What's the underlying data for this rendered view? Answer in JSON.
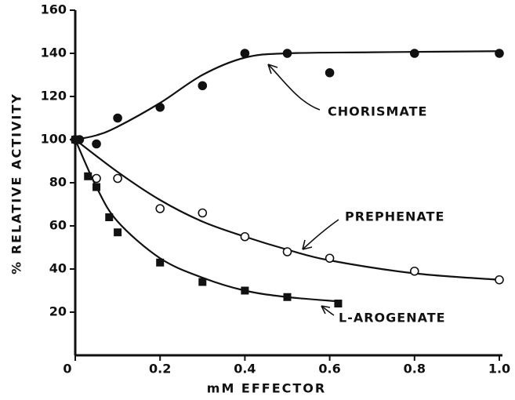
{
  "chart_data": {
    "type": "scatter",
    "xlabel": "mM EFFECTOR",
    "ylabel": "% RELATIVE ACTIVITY",
    "xlim": [
      0,
      1.0
    ],
    "ylim": [
      0,
      160
    ],
    "xticks": [
      0,
      0.2,
      0.4,
      0.6,
      0.8,
      {
        "value": 1,
        "label": "1.0"
      }
    ],
    "yticks": [
      20,
      40,
      60,
      80,
      100,
      120,
      140,
      160
    ],
    "color": "#111111",
    "series": [
      {
        "name": "CHORISMATE",
        "marker": "filled-circle",
        "x": [
          0,
          0.01,
          0.05,
          0.1,
          0.2,
          0.3,
          0.4,
          0.5,
          0.6,
          0.8,
          1.0
        ],
        "values": [
          100,
          100,
          98,
          110,
          115,
          125,
          140,
          140,
          131,
          140,
          140
        ],
        "fit_x": [
          0,
          0.05,
          0.1,
          0.2,
          0.3,
          0.4,
          0.5,
          0.7,
          1.0
        ],
        "fit_values": [
          100,
          102,
          106,
          117,
          130,
          138,
          140,
          140.5,
          141
        ]
      },
      {
        "name": "PREPHENATE",
        "marker": "open-circle",
        "x": [
          0,
          0.05,
          0.1,
          0.2,
          0.3,
          0.4,
          0.5,
          0.6,
          0.8,
          1.0
        ],
        "values": [
          100,
          82,
          82,
          68,
          66,
          55,
          48,
          45,
          39,
          35
        ],
        "fit_x": [
          0,
          0.1,
          0.2,
          0.3,
          0.4,
          0.5,
          0.6,
          0.8,
          1.0
        ],
        "fit_values": [
          100,
          85,
          72,
          62,
          55,
          49,
          44,
          38,
          35
        ]
      },
      {
        "name": "L-AROGENATE",
        "marker": "filled-square",
        "x": [
          0,
          0.03,
          0.05,
          0.08,
          0.1,
          0.2,
          0.3,
          0.4,
          0.5,
          0.62
        ],
        "values": [
          100,
          83,
          78,
          64,
          57,
          43,
          34,
          30,
          27,
          24
        ],
        "fit_x": [
          0,
          0.05,
          0.1,
          0.2,
          0.3,
          0.4,
          0.5,
          0.62
        ],
        "fit_values": [
          100,
          78,
          62,
          45,
          36,
          30,
          27,
          25
        ]
      }
    ]
  }
}
